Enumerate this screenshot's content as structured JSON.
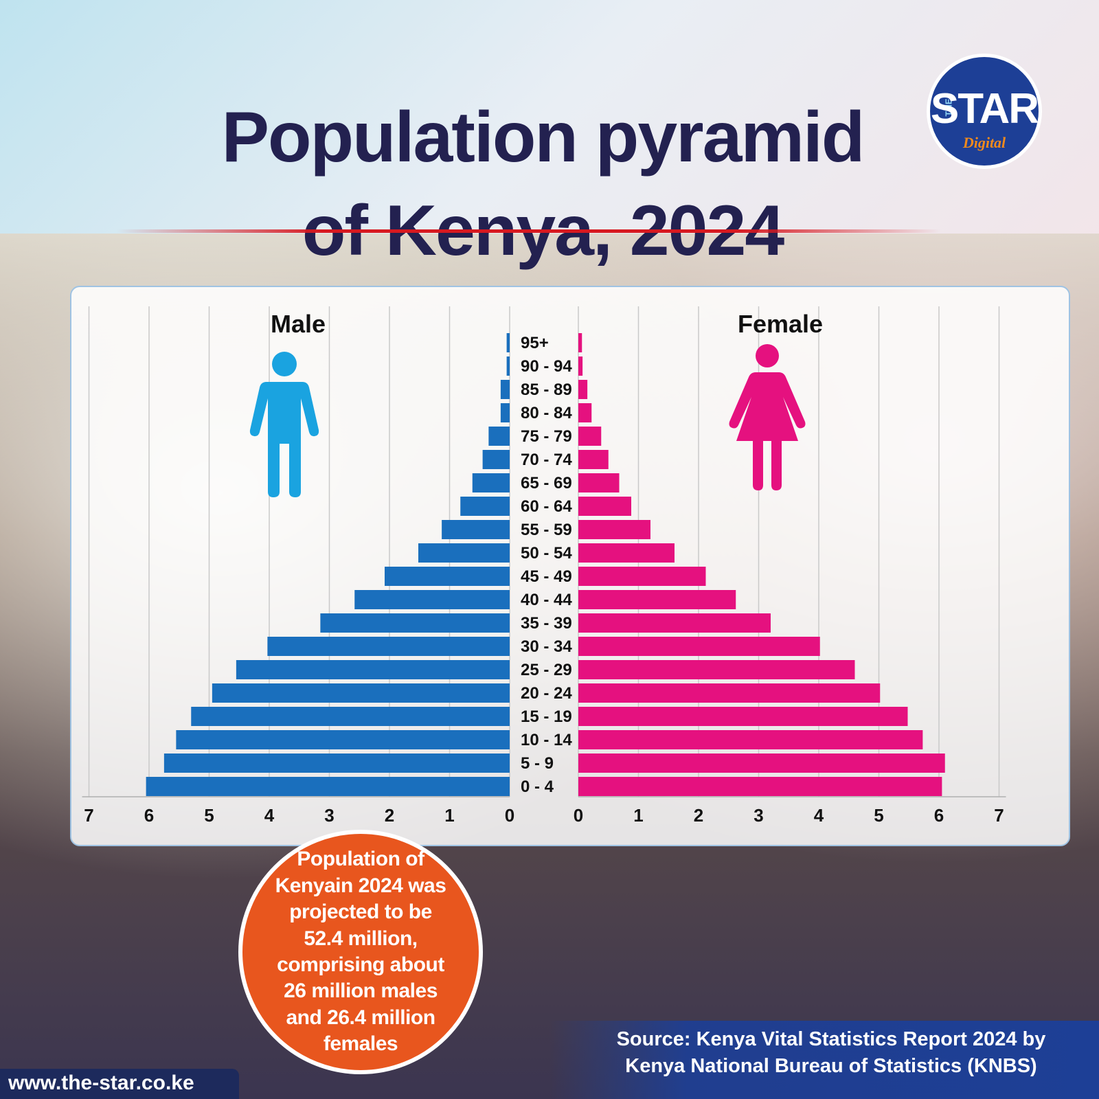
{
  "header": {
    "title_line1": "Population pyramid",
    "title_line2": "of Kenya, 2024"
  },
  "logo": {
    "the": "THE",
    "star": "STAR",
    "digital": "Digital"
  },
  "colors": {
    "title": "#232150",
    "male": "#1a6fbd",
    "male_icon": "#1aa3e0",
    "female": "#e5117f",
    "accent_rule": "#d71920",
    "callout": "#e8561e",
    "source_bar": "#1d3f96"
  },
  "callout": {
    "text": "Population of Kenyain 2024 was projected to be 52.4 million, comprising about 26 million males and 26.4 million females"
  },
  "source": {
    "text": "Source: Kenya Vital Statistics Report 2024 by Kenya National Bureau of Statistics (KNBS)"
  },
  "footer": {
    "url": "www.the-star.co.ke"
  },
  "chart_data": {
    "type": "bar",
    "orientation": "horizontal-pyramid",
    "left_label": "Male",
    "right_label": "Female",
    "left_icon": "male-person-icon",
    "right_icon": "female-person-icon",
    "xlim": [
      0,
      7
    ],
    "x_ticks": [
      0,
      1,
      2,
      3,
      4,
      5,
      6,
      7
    ],
    "grid": true,
    "categories": [
      "95+",
      "90 - 94",
      "85 - 89",
      "80 - 84",
      "75 - 79",
      "70 - 74",
      "65 - 69",
      "60 - 64",
      "55 - 59",
      "50 - 54",
      "45 - 49",
      "40 - 44",
      "35 - 39",
      "30 - 34",
      "25 - 29",
      "20 - 24",
      "15 - 19",
      "10 - 14",
      "5 - 9",
      "0 - 4"
    ],
    "series": [
      {
        "name": "Male",
        "values": [
          0.05,
          0.05,
          0.15,
          0.15,
          0.35,
          0.45,
          0.62,
          0.82,
          1.13,
          1.52,
          2.08,
          2.58,
          3.15,
          4.03,
          4.55,
          4.95,
          5.3,
          5.55,
          5.75,
          6.05
        ]
      },
      {
        "name": "Female",
        "values": [
          0.06,
          0.07,
          0.15,
          0.22,
          0.38,
          0.5,
          0.68,
          0.88,
          1.2,
          1.6,
          2.12,
          2.62,
          3.2,
          4.02,
          4.6,
          5.02,
          5.48,
          5.73,
          6.1,
          6.05
        ]
      }
    ]
  }
}
